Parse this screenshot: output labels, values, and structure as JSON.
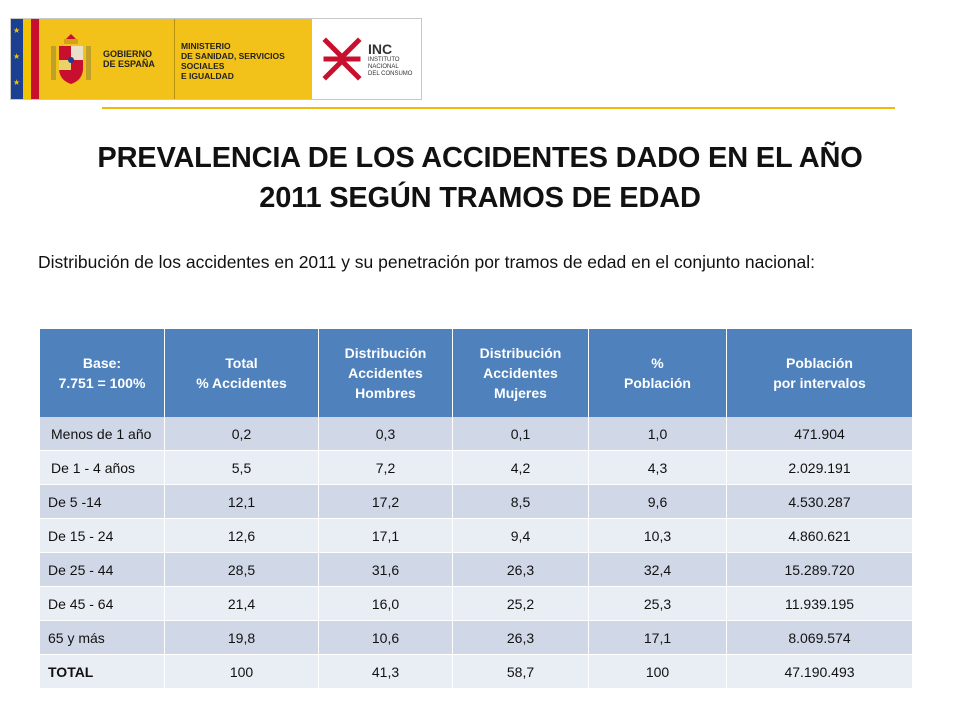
{
  "header": {
    "gobierno_text": "GOBIERNO\nDE ESPAÑA",
    "ministerio_text": "MINISTERIO\nDE SANIDAD, SERVICIOS SOCIALES\nE IGUALDAD",
    "inc_title": "INC",
    "inc_subtitle": "INSTITUTO\nNACIONAL\nDEL CONSUMO",
    "colors": {
      "gold": "#f2c21a",
      "rule": "#f2b90d",
      "flag_blue": "#1b3f91",
      "flag_red": "#c8102e",
      "inc_red": "#c8102e"
    }
  },
  "title_line1": "PREVALENCIA DE LOS ACCIDENTES DADO EN EL AÑO",
  "title_line2": "2011 SEGÚN TRAMOS DE EDAD",
  "subtitle": "Distribución de los accidentes en 2011 y su penetración por tramos de edad en el conjunto nacional:",
  "table": {
    "header_color": "#4f81bd",
    "columns": [
      [
        "Base:",
        "7.751 = 100%"
      ],
      [
        "Total",
        "% Accidentes"
      ],
      [
        "Distribución",
        "Accidentes",
        "Hombres"
      ],
      [
        "Distribución",
        "Accidentes",
        "Mujeres"
      ],
      [
        "%",
        "Población"
      ],
      [
        "Población",
        "por intervalos"
      ]
    ],
    "rows": [
      [
        "Menos de 1 año",
        "0,2",
        "0,3",
        "0,1",
        "1,0",
        "471.904"
      ],
      [
        "De 1 - 4 años",
        "5,5",
        "7,2",
        "4,2",
        "4,3",
        "2.029.191"
      ],
      [
        "De 5 -14",
        "12,1",
        "17,2",
        "8,5",
        "9,6",
        "4.530.287"
      ],
      [
        "De 15 - 24",
        "12,6",
        "17,1",
        "9,4",
        "10,3",
        "4.860.621"
      ],
      [
        "De 25 - 44",
        "28,5",
        "31,6",
        "26,3",
        "32,4",
        "15.289.720"
      ],
      [
        "De 45 -  64",
        "21,4",
        "16,0",
        "25,2",
        "25,3",
        "11.939.195"
      ],
      [
        "65 y más",
        "19,8",
        "10,6",
        "26,3",
        "17,1",
        "8.069.574"
      ],
      [
        "TOTAL",
        "100",
        "41,3",
        "58,7",
        "100",
        "47.190.493"
      ]
    ]
  }
}
